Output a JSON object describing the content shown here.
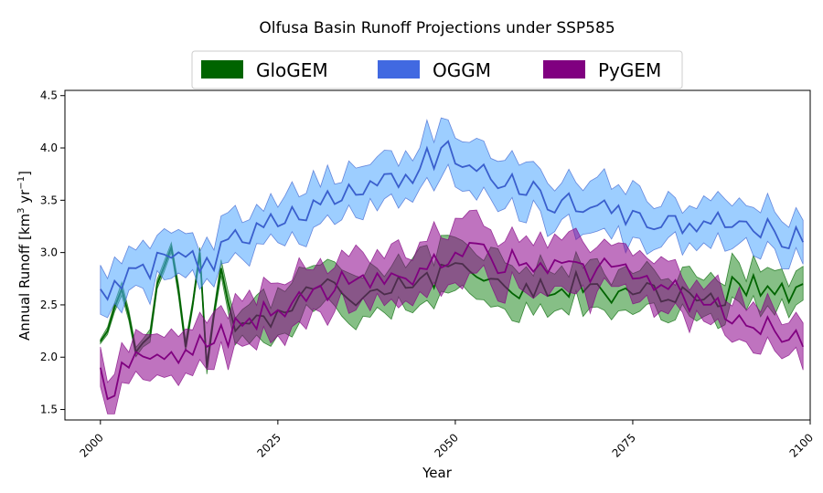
{
  "chart_data": {
    "type": "area",
    "title": "Olfusa Basin Runoff Projections under SSP585",
    "xlabel": "Year",
    "ylabel_main": "Annual Runoff [km",
    "ylabel_sup1": "3",
    "ylabel_mid": " yr",
    "ylabel_sup2": "−1",
    "ylabel_end": "]",
    "xlim": [
      1995,
      2100
    ],
    "ylim": [
      1.4,
      4.55
    ],
    "xticks": [
      2000,
      2025,
      2050,
      2075,
      2100
    ],
    "yticks": [
      1.5,
      2.0,
      2.5,
      3.0,
      3.5,
      4.0,
      4.5
    ],
    "legend_position": "top-center",
    "series": [
      {
        "name": "GloGEM",
        "line_color": "#006400",
        "fill_color": "#228B22",
        "keys": [
          {
            "year": 2000,
            "mean": 2.15,
            "spread": 0.02
          },
          {
            "year": 2001,
            "mean": 2.25,
            "spread": 0.03
          },
          {
            "year": 2003,
            "mean": 2.65,
            "spread": 0.05
          },
          {
            "year": 2005,
            "mean": 2.05,
            "spread": 0.04
          },
          {
            "year": 2007,
            "mean": 2.2,
            "spread": 0.05
          },
          {
            "year": 2008,
            "mean": 2.7,
            "spread": 0.04
          },
          {
            "year": 2010,
            "mean": 3.05,
            "spread": 0.05
          },
          {
            "year": 2012,
            "mean": 2.1,
            "spread": 0.05
          },
          {
            "year": 2014,
            "mean": 3.0,
            "spread": 0.05
          },
          {
            "year": 2015,
            "mean": 1.9,
            "spread": 0.05
          },
          {
            "year": 2017,
            "mean": 2.85,
            "spread": 0.06
          },
          {
            "year": 2019,
            "mean": 2.25,
            "spread": 0.12
          },
          {
            "year": 2022,
            "mean": 2.4,
            "spread": 0.2
          },
          {
            "year": 2025,
            "mean": 2.45,
            "spread": 0.22
          },
          {
            "year": 2030,
            "mean": 2.65,
            "spread": 0.22
          },
          {
            "year": 2035,
            "mean": 2.55,
            "spread": 0.2
          },
          {
            "year": 2040,
            "mean": 2.6,
            "spread": 0.22
          },
          {
            "year": 2045,
            "mean": 2.75,
            "spread": 0.22
          },
          {
            "year": 2050,
            "mean": 2.9,
            "spread": 0.24
          },
          {
            "year": 2055,
            "mean": 2.75,
            "spread": 0.22
          },
          {
            "year": 2060,
            "mean": 2.7,
            "spread": 0.22
          },
          {
            "year": 2065,
            "mean": 2.65,
            "spread": 0.2
          },
          {
            "year": 2070,
            "mean": 2.7,
            "spread": 0.2
          },
          {
            "year": 2075,
            "mean": 2.6,
            "spread": 0.2
          },
          {
            "year": 2080,
            "mean": 2.55,
            "spread": 0.18
          },
          {
            "year": 2085,
            "mean": 2.55,
            "spread": 0.18
          },
          {
            "year": 2090,
            "mean": 2.7,
            "spread": 0.17
          },
          {
            "year": 2095,
            "mean": 2.6,
            "spread": 0.17
          },
          {
            "year": 2099,
            "mean": 2.7,
            "spread": 0.17
          }
        ]
      },
      {
        "name": "OGGM",
        "line_color": "#3a5fcd",
        "fill_color": "#4da6ff",
        "keys": [
          {
            "year": 2000,
            "mean": 2.65,
            "spread": 0.2
          },
          {
            "year": 2005,
            "mean": 2.85,
            "spread": 0.2
          },
          {
            "year": 2010,
            "mean": 2.95,
            "spread": 0.2
          },
          {
            "year": 2015,
            "mean": 2.95,
            "spread": 0.2
          },
          {
            "year": 2020,
            "mean": 3.1,
            "spread": 0.2
          },
          {
            "year": 2025,
            "mean": 3.25,
            "spread": 0.2
          },
          {
            "year": 2030,
            "mean": 3.5,
            "spread": 0.22
          },
          {
            "year": 2035,
            "mean": 3.65,
            "spread": 0.22
          },
          {
            "year": 2040,
            "mean": 3.75,
            "spread": 0.22
          },
          {
            "year": 2045,
            "mean": 3.8,
            "spread": 0.24
          },
          {
            "year": 2048,
            "mean": 4.0,
            "spread": 0.25
          },
          {
            "year": 2050,
            "mean": 3.85,
            "spread": 0.24
          },
          {
            "year": 2055,
            "mean": 3.7,
            "spread": 0.23
          },
          {
            "year": 2060,
            "mean": 3.55,
            "spread": 0.22
          },
          {
            "year": 2065,
            "mean": 3.5,
            "spread": 0.22
          },
          {
            "year": 2070,
            "mean": 3.45,
            "spread": 0.22
          },
          {
            "year": 2075,
            "mean": 3.4,
            "spread": 0.22
          },
          {
            "year": 2080,
            "mean": 3.35,
            "spread": 0.2
          },
          {
            "year": 2085,
            "mean": 3.3,
            "spread": 0.2
          },
          {
            "year": 2090,
            "mean": 3.3,
            "spread": 0.2
          },
          {
            "year": 2095,
            "mean": 3.2,
            "spread": 0.2
          },
          {
            "year": 2099,
            "mean": 3.1,
            "spread": 0.18
          }
        ]
      },
      {
        "name": "PyGEM",
        "line_color": "#800080",
        "fill_color": "#8b008b",
        "keys": [
          {
            "year": 2000,
            "mean": 1.9,
            "spread": 0.15
          },
          {
            "year": 2001,
            "mean": 1.6,
            "spread": 0.12
          },
          {
            "year": 2003,
            "mean": 1.95,
            "spread": 0.17
          },
          {
            "year": 2005,
            "mean": 2.05,
            "spread": 0.2
          },
          {
            "year": 2010,
            "mean": 2.05,
            "spread": 0.2
          },
          {
            "year": 2015,
            "mean": 2.1,
            "spread": 0.2
          },
          {
            "year": 2020,
            "mean": 2.3,
            "spread": 0.22
          },
          {
            "year": 2025,
            "mean": 2.45,
            "spread": 0.22
          },
          {
            "year": 2030,
            "mean": 2.65,
            "spread": 0.24
          },
          {
            "year": 2035,
            "mean": 2.7,
            "spread": 0.24
          },
          {
            "year": 2040,
            "mean": 2.7,
            "spread": 0.24
          },
          {
            "year": 2045,
            "mean": 2.85,
            "spread": 0.25
          },
          {
            "year": 2050,
            "mean": 3.0,
            "spread": 0.26
          },
          {
            "year": 2055,
            "mean": 2.95,
            "spread": 0.26
          },
          {
            "year": 2060,
            "mean": 2.9,
            "spread": 0.26
          },
          {
            "year": 2065,
            "mean": 2.9,
            "spread": 0.25
          },
          {
            "year": 2070,
            "mean": 2.85,
            "spread": 0.25
          },
          {
            "year": 2075,
            "mean": 2.75,
            "spread": 0.23
          },
          {
            "year": 2080,
            "mean": 2.65,
            "spread": 0.22
          },
          {
            "year": 2085,
            "mean": 2.5,
            "spread": 0.2
          },
          {
            "year": 2090,
            "mean": 2.4,
            "spread": 0.2
          },
          {
            "year": 2095,
            "mean": 2.25,
            "spread": 0.2
          },
          {
            "year": 2099,
            "mean": 2.1,
            "spread": 0.18
          }
        ]
      }
    ]
  }
}
